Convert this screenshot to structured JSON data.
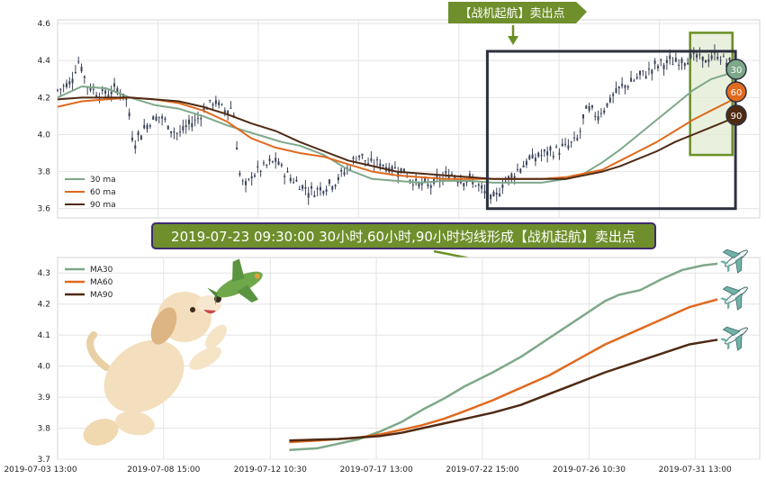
{
  "sell_label": "【战机起航】卖出点",
  "banner": "2019-07-23 09:30:00 30小时,60小时,90小时均线形成【战机起航】卖出点",
  "colors": {
    "ma30": "#7ea88a",
    "ma60": "#e06a1e",
    "ma90": "#4f2a13",
    "candle": "#3a4257",
    "box": "#2c313d",
    "green": "#6a8f27",
    "bg": "#ffffff",
    "grid": "#e4e4e4",
    "bannerbg": "#6e8f2b",
    "bannerborder": "#3f2a6b",
    "highlight": "#e2ebd3"
  },
  "icons": {
    "plane": "airplane-icon",
    "dog": "puppy-illustration",
    "toy_plane": "toy-plane-icon"
  },
  "chart_data": [
    {
      "type": "candlestick",
      "panel": "top",
      "ylim": [
        3.55,
        4.62
      ],
      "yticks": [
        3.6,
        3.8,
        4.0,
        4.2,
        4.4,
        4.6
      ],
      "grid": true,
      "legend_position": "bottom-left",
      "legend": [
        "30 ma",
        "60 ma",
        "90 ma"
      ],
      "series": [
        {
          "name": "30 ma",
          "values": [
            [
              0,
              4.2
            ],
            [
              0.04,
              4.26
            ],
            [
              0.08,
              4.25
            ],
            [
              0.12,
              4.2
            ],
            [
              0.16,
              4.16
            ],
            [
              0.2,
              4.14
            ],
            [
              0.24,
              4.1
            ],
            [
              0.28,
              4.05
            ],
            [
              0.31,
              4.02
            ],
            [
              0.33,
              4.0
            ],
            [
              0.37,
              3.96
            ],
            [
              0.4,
              3.94
            ],
            [
              0.44,
              3.89
            ],
            [
              0.48,
              3.81
            ],
            [
              0.52,
              3.76
            ],
            [
              0.56,
              3.75
            ],
            [
              0.6,
              3.74
            ],
            [
              0.64,
              3.75
            ],
            [
              0.68,
              3.75
            ],
            [
              0.72,
              3.74
            ],
            [
              0.76,
              3.74
            ],
            [
              0.8,
              3.74
            ],
            [
              0.84,
              3.76
            ],
            [
              0.87,
              3.79
            ],
            [
              0.9,
              3.85
            ],
            [
              0.93,
              3.92
            ],
            [
              0.96,
              4.0
            ],
            [
              0.99,
              4.08
            ],
            [
              1.02,
              4.16
            ],
            [
              1.05,
              4.24
            ],
            [
              1.08,
              4.3
            ],
            [
              1.11,
              4.33
            ],
            [
              1.13,
              4.33
            ]
          ]
        },
        {
          "name": "60 ma",
          "values": [
            [
              0,
              4.15
            ],
            [
              0.04,
              4.18
            ],
            [
              0.08,
              4.19
            ],
            [
              0.12,
              4.2
            ],
            [
              0.16,
              4.19
            ],
            [
              0.2,
              4.17
            ],
            [
              0.24,
              4.13
            ],
            [
              0.28,
              4.07
            ],
            [
              0.32,
              3.98
            ],
            [
              0.36,
              3.93
            ],
            [
              0.4,
              3.9
            ],
            [
              0.44,
              3.88
            ],
            [
              0.48,
              3.84
            ],
            [
              0.52,
              3.8
            ],
            [
              0.56,
              3.78
            ],
            [
              0.6,
              3.77
            ],
            [
              0.64,
              3.76
            ],
            [
              0.68,
              3.76
            ],
            [
              0.72,
              3.76
            ],
            [
              0.76,
              3.76
            ],
            [
              0.8,
              3.76
            ],
            [
              0.84,
              3.77
            ],
            [
              0.87,
              3.79
            ],
            [
              0.9,
              3.81
            ],
            [
              0.93,
              3.86
            ],
            [
              0.96,
              3.91
            ],
            [
              0.99,
              3.96
            ],
            [
              1.02,
              4.02
            ],
            [
              1.05,
              4.08
            ],
            [
              1.08,
              4.13
            ],
            [
              1.11,
              4.18
            ],
            [
              1.13,
              4.22
            ]
          ]
        },
        {
          "name": "90 ma",
          "values": [
            [
              0,
              4.19
            ],
            [
              0.04,
              4.2
            ],
            [
              0.08,
              4.2
            ],
            [
              0.12,
              4.2
            ],
            [
              0.16,
              4.19
            ],
            [
              0.2,
              4.18
            ],
            [
              0.24,
              4.15
            ],
            [
              0.28,
              4.11
            ],
            [
              0.32,
              4.06
            ],
            [
              0.36,
              4.02
            ],
            [
              0.4,
              3.96
            ],
            [
              0.44,
              3.91
            ],
            [
              0.48,
              3.86
            ],
            [
              0.52,
              3.83
            ],
            [
              0.56,
              3.8
            ],
            [
              0.6,
              3.79
            ],
            [
              0.64,
              3.78
            ],
            [
              0.68,
              3.77
            ],
            [
              0.72,
              3.76
            ],
            [
              0.76,
              3.76
            ],
            [
              0.8,
              3.76
            ],
            [
              0.84,
              3.76
            ],
            [
              0.87,
              3.78
            ],
            [
              0.9,
              3.8
            ],
            [
              0.93,
              3.83
            ],
            [
              0.96,
              3.87
            ],
            [
              0.99,
              3.91
            ],
            [
              1.02,
              3.96
            ],
            [
              1.05,
              4.0
            ],
            [
              1.08,
              4.04
            ],
            [
              1.11,
              4.08
            ],
            [
              1.13,
              4.1
            ]
          ]
        }
      ],
      "candles_close_path": [
        [
          0,
          4.24
        ],
        [
          0.02,
          4.28
        ],
        [
          0.035,
          4.4
        ],
        [
          0.05,
          4.26
        ],
        [
          0.07,
          4.22
        ],
        [
          0.09,
          4.23
        ],
        [
          0.1,
          4.25
        ],
        [
          0.115,
          4.18
        ],
        [
          0.125,
          3.95
        ],
        [
          0.14,
          4.02
        ],
        [
          0.155,
          4.08
        ],
        [
          0.17,
          4.1
        ],
        [
          0.185,
          4.04
        ],
        [
          0.2,
          4.0
        ],
        [
          0.215,
          4.05
        ],
        [
          0.23,
          4.08
        ],
        [
          0.245,
          4.15
        ],
        [
          0.26,
          4.18
        ],
        [
          0.275,
          4.13
        ],
        [
          0.29,
          4.15
        ],
        [
          0.3,
          3.8
        ],
        [
          0.31,
          3.7
        ],
        [
          0.32,
          3.78
        ],
        [
          0.34,
          3.82
        ],
        [
          0.36,
          3.86
        ],
        [
          0.38,
          3.78
        ],
        [
          0.4,
          3.73
        ],
        [
          0.42,
          3.69
        ],
        [
          0.44,
          3.72
        ],
        [
          0.46,
          3.75
        ],
        [
          0.48,
          3.82
        ],
        [
          0.5,
          3.9
        ],
        [
          0.515,
          3.83
        ],
        [
          0.53,
          3.85
        ],
        [
          0.55,
          3.82
        ],
        [
          0.57,
          3.81
        ],
        [
          0.59,
          3.74
        ],
        [
          0.61,
          3.72
        ],
        [
          0.63,
          3.75
        ],
        [
          0.65,
          3.79
        ],
        [
          0.67,
          3.76
        ],
        [
          0.69,
          3.74
        ],
        [
          0.705,
          3.68
        ],
        [
          0.72,
          3.64
        ],
        [
          0.735,
          3.73
        ],
        [
          0.75,
          3.78
        ],
        [
          0.77,
          3.84
        ],
        [
          0.79,
          3.88
        ],
        [
          0.81,
          3.9
        ],
        [
          0.83,
          3.92
        ],
        [
          0.845,
          3.94
        ],
        [
          0.86,
          3.98
        ],
        [
          0.875,
          4.15
        ],
        [
          0.89,
          4.1
        ],
        [
          0.905,
          4.15
        ],
        [
          0.92,
          4.22
        ],
        [
          0.935,
          4.26
        ],
        [
          0.95,
          4.29
        ],
        [
          0.965,
          4.32
        ],
        [
          0.98,
          4.35
        ],
        [
          0.995,
          4.38
        ],
        [
          1.01,
          4.39
        ],
        [
          1.03,
          4.4
        ],
        [
          1.05,
          4.42
        ],
        [
          1.07,
          4.4
        ],
        [
          1.09,
          4.43
        ],
        [
          1.11,
          4.38
        ],
        [
          1.13,
          4.35
        ]
      ],
      "sell_box_range": [
        0.71,
        1.12
      ],
      "sell_box_ylim": [
        3.6,
        4.45
      ],
      "highlight_range": [
        1.045,
        1.115
      ],
      "highlight_ylim": [
        3.89,
        4.55
      ],
      "end_labels": [
        "30",
        "60",
        "90"
      ]
    },
    {
      "type": "line",
      "panel": "bottom",
      "ylim": [
        3.7,
        4.35
      ],
      "yticks": [
        3.7,
        3.8,
        3.9,
        4.0,
        4.1,
        4.2,
        4.3
      ],
      "grid": true,
      "legend_position": "top-left",
      "legend": [
        "MA30",
        "MA60",
        "MA90"
      ],
      "xticks": [
        "2019-07-03 13:00",
        "2019-07-08 15:00",
        "2019-07-12 10:30",
        "2019-07-17 13:00",
        "2019-07-22 15:00",
        "2019-07-26 10:30",
        "2019-07-31 13:00"
      ],
      "series": [
        {
          "name": "MA30",
          "values": [
            [
              0.33,
              3.73
            ],
            [
              0.37,
              3.735
            ],
            [
              0.4,
              3.75
            ],
            [
              0.43,
              3.765
            ],
            [
              0.46,
              3.79
            ],
            [
              0.49,
              3.82
            ],
            [
              0.52,
              3.86
            ],
            [
              0.55,
              3.895
            ],
            [
              0.58,
              3.935
            ],
            [
              0.62,
              3.98
            ],
            [
              0.66,
              4.03
            ],
            [
              0.7,
              4.09
            ],
            [
              0.74,
              4.15
            ],
            [
              0.78,
              4.21
            ],
            [
              0.8,
              4.23
            ],
            [
              0.83,
              4.245
            ],
            [
              0.86,
              4.28
            ],
            [
              0.89,
              4.31
            ],
            [
              0.92,
              4.325
            ],
            [
              0.94,
              4.33
            ]
          ]
        },
        {
          "name": "MA60",
          "values": [
            [
              0.33,
              3.755
            ],
            [
              0.37,
              3.76
            ],
            [
              0.4,
              3.765
            ],
            [
              0.43,
              3.77
            ],
            [
              0.46,
              3.78
            ],
            [
              0.49,
              3.795
            ],
            [
              0.52,
              3.81
            ],
            [
              0.55,
              3.83
            ],
            [
              0.58,
              3.855
            ],
            [
              0.62,
              3.89
            ],
            [
              0.66,
              3.93
            ],
            [
              0.7,
              3.97
            ],
            [
              0.74,
              4.02
            ],
            [
              0.78,
              4.07
            ],
            [
              0.82,
              4.11
            ],
            [
              0.86,
              4.15
            ],
            [
              0.9,
              4.19
            ],
            [
              0.94,
              4.215
            ]
          ]
        },
        {
          "name": "MA90",
          "values": [
            [
              0.33,
              3.76
            ],
            [
              0.37,
              3.763
            ],
            [
              0.4,
              3.765
            ],
            [
              0.43,
              3.77
            ],
            [
              0.46,
              3.775
            ],
            [
              0.49,
              3.785
            ],
            [
              0.52,
              3.8
            ],
            [
              0.55,
              3.815
            ],
            [
              0.58,
              3.83
            ],
            [
              0.62,
              3.85
            ],
            [
              0.66,
              3.875
            ],
            [
              0.7,
              3.91
            ],
            [
              0.74,
              3.945
            ],
            [
              0.78,
              3.98
            ],
            [
              0.82,
              4.01
            ],
            [
              0.86,
              4.04
            ],
            [
              0.9,
              4.07
            ],
            [
              0.94,
              4.085
            ]
          ]
        }
      ]
    }
  ]
}
